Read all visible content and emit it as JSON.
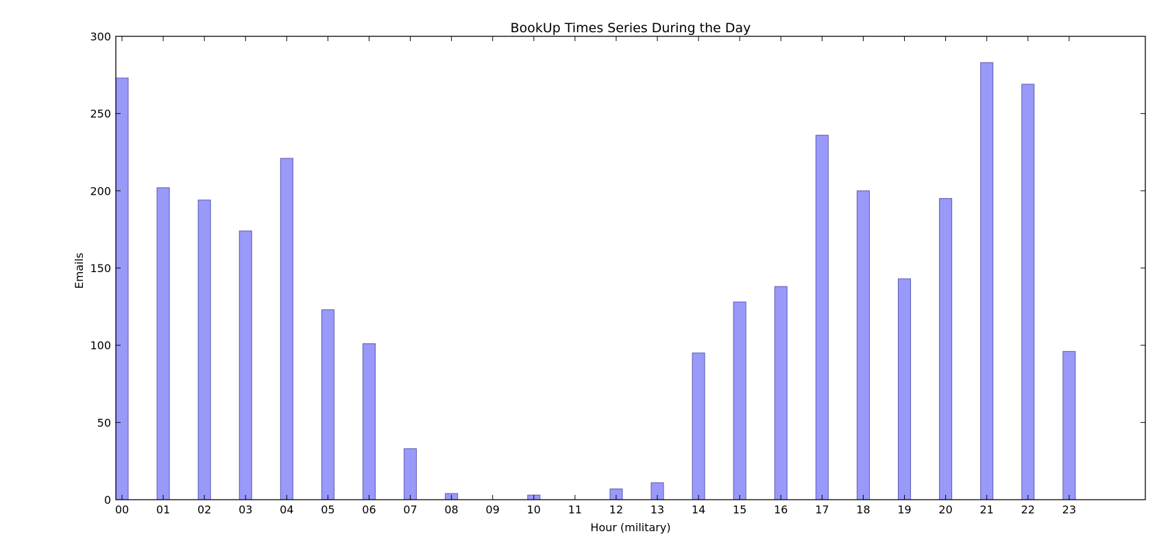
{
  "chart_data": {
    "type": "bar",
    "title": "BookUp Times Series During the Day",
    "xlabel": "Hour (military)",
    "ylabel": "Emails",
    "categories": [
      "00",
      "01",
      "02",
      "03",
      "04",
      "05",
      "06",
      "07",
      "08",
      "09",
      "10",
      "11",
      "12",
      "13",
      "14",
      "15",
      "16",
      "17",
      "18",
      "19",
      "20",
      "21",
      "22",
      "23"
    ],
    "values": [
      273,
      202,
      194,
      174,
      221,
      123,
      101,
      33,
      4,
      0,
      3,
      0,
      7,
      11,
      95,
      128,
      138,
      236,
      200,
      143,
      195,
      283,
      269,
      96
    ],
    "ylim": [
      0,
      300
    ],
    "yticks": [
      0,
      50,
      100,
      150,
      200,
      250,
      300
    ],
    "xlim": [
      0,
      25
    ],
    "grid": false,
    "colors": {
      "bar_fill": "#9999fa",
      "bar_edge": "#5a5ab0",
      "axis": "#000000"
    }
  }
}
